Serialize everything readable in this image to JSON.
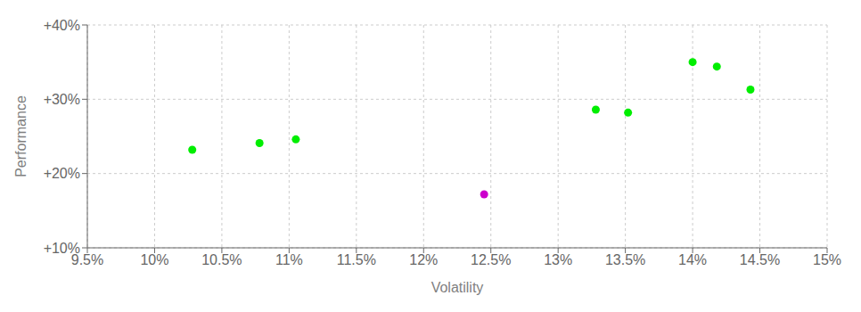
{
  "chart_data": {
    "type": "scatter",
    "xlabel": "Volatility",
    "ylabel": "Performance",
    "x": [
      10.28,
      10.78,
      11.05,
      12.45,
      13.28,
      13.52,
      14.0,
      14.18,
      14.43
    ],
    "values": [
      23.2,
      24.1,
      24.6,
      17.2,
      28.6,
      28.2,
      35.0,
      34.4,
      31.3
    ],
    "colors": [
      "#00ee00",
      "#00ee00",
      "#00ee00",
      "#cc00cc",
      "#00ee00",
      "#00ee00",
      "#00ee00",
      "#00ee00",
      "#00ee00"
    ],
    "xlim": [
      9.5,
      15.0
    ],
    "ylim": [
      10.0,
      40.0
    ],
    "xticks": [
      {
        "value": 9.5,
        "label": "9.5%"
      },
      {
        "value": 10.0,
        "label": "10%"
      },
      {
        "value": 10.5,
        "label": "10.5%"
      },
      {
        "value": 11.0,
        "label": "11%"
      },
      {
        "value": 11.5,
        "label": "11.5%"
      },
      {
        "value": 12.0,
        "label": "12%"
      },
      {
        "value": 12.5,
        "label": "12.5%"
      },
      {
        "value": 13.0,
        "label": "13%"
      },
      {
        "value": 13.5,
        "label": "13.5%"
      },
      {
        "value": 14.0,
        "label": "14%"
      },
      {
        "value": 14.5,
        "label": "14.5%"
      },
      {
        "value": 15.0,
        "label": "15%"
      }
    ],
    "yticks": [
      {
        "value": 10.0,
        "label": "+10%"
      },
      {
        "value": 20.0,
        "label": "+20%"
      },
      {
        "value": 30.0,
        "label": "+30%"
      },
      {
        "value": 40.0,
        "label": "+40%"
      }
    ],
    "grid": true
  }
}
